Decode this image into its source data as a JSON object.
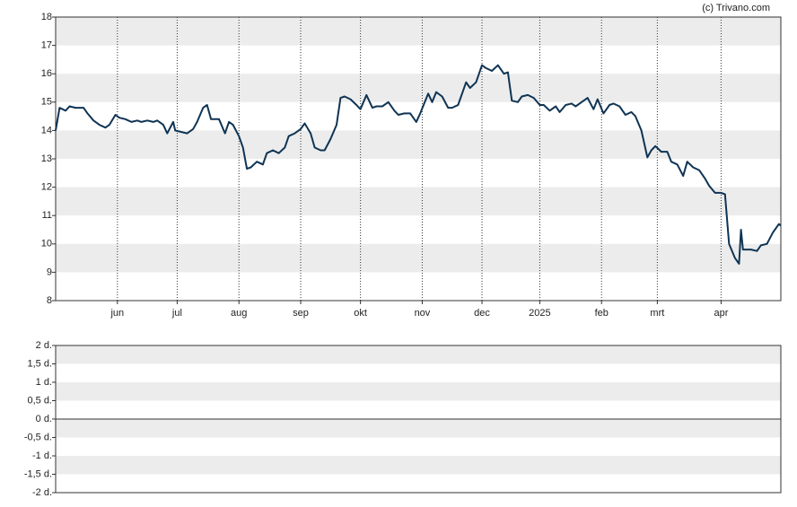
{
  "credit": "(c) Trivano.com",
  "chart_data": [
    {
      "type": "line",
      "x": [
        0,
        2,
        5,
        7,
        10,
        14,
        16,
        19,
        22,
        25,
        27,
        30,
        32,
        35,
        38,
        41,
        43,
        46,
        49,
        51,
        54,
        56,
        59,
        60,
        63,
        66,
        69,
        71,
        74,
        76,
        78,
        82,
        85,
        87,
        89,
        92,
        94,
        96,
        98,
        101,
        104,
        106,
        109,
        112,
        115,
        117,
        120,
        123,
        125,
        128,
        130,
        133,
        135,
        138,
        141,
        143,
        145,
        148,
        151,
        153,
        156,
        159,
        161,
        164,
        167,
        170,
        172,
        175,
        178,
        181,
        183,
        187,
        189,
        191,
        194,
        197,
        199,
        202,
        206,
        208,
        211,
        214,
        216,
        219,
        222,
        225,
        227,
        229,
        232,
        234,
        237,
        240,
        243,
        245,
        248,
        251,
        253,
        256,
        259,
        261,
        264,
        267,
        270,
        272,
        275,
        278,
        280,
        283,
        286,
        289,
        291,
        294,
        297,
        299,
        301,
        304,
        307,
        309,
        312,
        315,
        317,
        320,
        323,
        326,
        328,
        331,
        334,
        336,
        338,
        341,
        343,
        344,
        345,
        349,
        352,
        354,
        357,
        360,
        363,
        364
      ],
      "series": [
        {
          "color": "#0f3454",
          "values": [
            14.0,
            14.8,
            14.7,
            14.85,
            14.8,
            14.8,
            14.6,
            14.35,
            14.2,
            14.1,
            14.2,
            14.55,
            14.45,
            14.4,
            14.3,
            14.35,
            14.3,
            14.35,
            14.3,
            14.35,
            14.2,
            13.9,
            14.3,
            14.0,
            13.95,
            13.9,
            14.05,
            14.3,
            14.8,
            14.9,
            14.4,
            14.4,
            13.9,
            14.3,
            14.2,
            13.8,
            13.4,
            12.65,
            12.7,
            12.9,
            12.8,
            13.2,
            13.3,
            13.2,
            13.4,
            13.8,
            13.9,
            14.05,
            14.25,
            13.9,
            13.4,
            13.3,
            13.3,
            13.7,
            14.2,
            15.15,
            15.2,
            15.1,
            14.9,
            14.75,
            15.25,
            14.8,
            14.85,
            14.85,
            15.0,
            14.7,
            14.55,
            14.6,
            14.6,
            14.3,
            14.6,
            15.3,
            15.0,
            15.35,
            15.2,
            14.8,
            14.8,
            14.9,
            15.7,
            15.5,
            15.7,
            16.3,
            16.2,
            16.1,
            16.3,
            16.0,
            16.05,
            15.05,
            15.0,
            15.2,
            15.25,
            15.15,
            14.9,
            14.9,
            14.7,
            14.85,
            14.65,
            14.9,
            14.95,
            14.85,
            15.0,
            15.15,
            14.75,
            15.1,
            14.6,
            14.9,
            14.95,
            14.85,
            14.55,
            14.65,
            14.5,
            14.0,
            13.05,
            13.3,
            13.45,
            13.25,
            13.25,
            12.9,
            12.8,
            12.4,
            12.9,
            12.7,
            12.6,
            12.3,
            12.05,
            11.8,
            11.8,
            11.75,
            10.0,
            9.5,
            9.3,
            10.5,
            9.8,
            9.8,
            9.75,
            9.95,
            10.0,
            10.4,
            10.7,
            10.65
          ]
        }
      ],
      "xlim": [
        0,
        364
      ],
      "xticks": [
        {
          "value": 31,
          "label": "jun"
        },
        {
          "value": 61,
          "label": "jul"
        },
        {
          "value": 92,
          "label": "aug"
        },
        {
          "value": 123,
          "label": "sep"
        },
        {
          "value": 153,
          "label": "okt"
        },
        {
          "value": 184,
          "label": "nov"
        },
        {
          "value": 214,
          "label": "dec"
        },
        {
          "value": 243,
          "label": "2025"
        },
        {
          "value": 274,
          "label": "feb"
        },
        {
          "value": 302,
          "label": "mrt"
        },
        {
          "value": 334,
          "label": "apr"
        }
      ],
      "ylim": [
        8,
        18
      ],
      "yticks": [
        8,
        9,
        10,
        11,
        12,
        13,
        14,
        15,
        16,
        17,
        18
      ],
      "grid": true
    },
    {
      "type": "bar",
      "ylim": [
        -2,
        2
      ],
      "yticks": [
        {
          "value": 2,
          "label": "2 d."
        },
        {
          "value": 1.5,
          "label": "1,5 d."
        },
        {
          "value": 1,
          "label": "1 d."
        },
        {
          "value": 0.5,
          "label": "0,5 d."
        },
        {
          "value": 0,
          "label": "0 d."
        },
        {
          "value": -0.5,
          "label": "-0,5 d."
        },
        {
          "value": -1,
          "label": "-1 d."
        },
        {
          "value": -1.5,
          "label": "-1,5 d."
        },
        {
          "value": -2,
          "label": "-2 d."
        }
      ],
      "grid": true
    }
  ]
}
